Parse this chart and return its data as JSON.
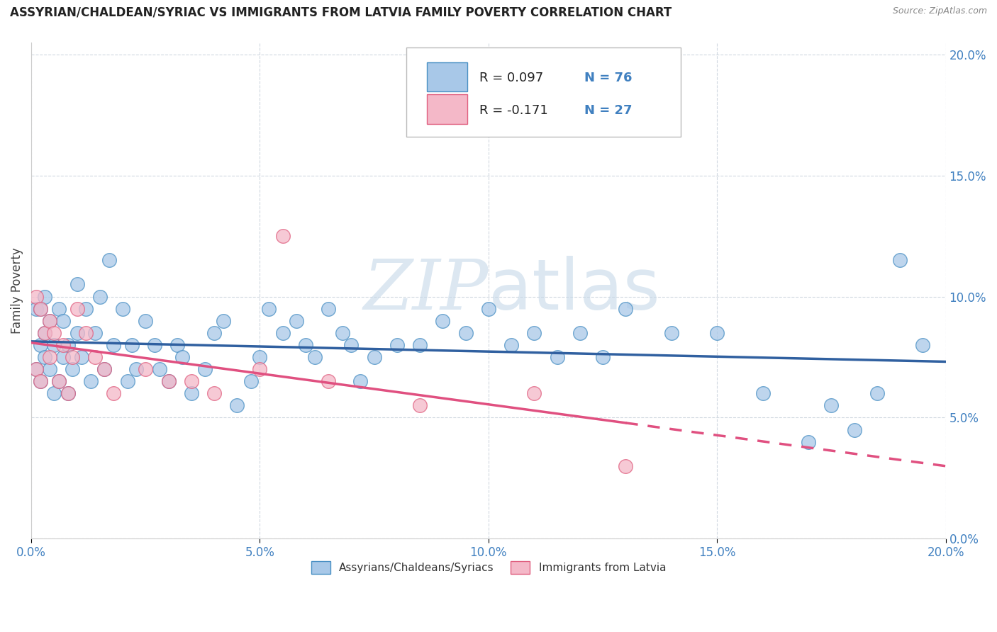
{
  "title": "ASSYRIAN/CHALDEAN/SYRIAC VS IMMIGRANTS FROM LATVIA FAMILY POVERTY CORRELATION CHART",
  "source": "Source: ZipAtlas.com",
  "ylabel": "Family Poverty",
  "legend_label1": "Assyrians/Chaldeans/Syriacs",
  "legend_label2": "Immigrants from Latvia",
  "R1": 0.097,
  "N1": 76,
  "R2": -0.171,
  "N2": 27,
  "color_blue_fill": "#a8c8e8",
  "color_blue_edge": "#4a90c4",
  "color_pink_fill": "#f4b8c8",
  "color_pink_edge": "#e06080",
  "color_blue_line": "#3060a0",
  "color_pink_line": "#e05080",
  "watermark_color": "#c8d8e8",
  "xmin": 0.0,
  "xmax": 0.2,
  "ymin": 0.0,
  "ymax": 0.205,
  "yticks": [
    0.0,
    0.05,
    0.1,
    0.15,
    0.2
  ],
  "ytick_labels": [
    "0.0%",
    "5.0%",
    "10.0%",
    "15.0%",
    "20.0%"
  ],
  "blue_x": [
    0.001,
    0.001,
    0.002,
    0.002,
    0.002,
    0.003,
    0.003,
    0.003,
    0.004,
    0.004,
    0.005,
    0.005,
    0.006,
    0.006,
    0.007,
    0.007,
    0.008,
    0.008,
    0.009,
    0.01,
    0.01,
    0.011,
    0.012,
    0.013,
    0.014,
    0.015,
    0.016,
    0.017,
    0.018,
    0.02,
    0.021,
    0.022,
    0.023,
    0.025,
    0.027,
    0.028,
    0.03,
    0.032,
    0.033,
    0.035,
    0.038,
    0.04,
    0.042,
    0.045,
    0.048,
    0.05,
    0.052,
    0.055,
    0.058,
    0.06,
    0.062,
    0.065,
    0.068,
    0.07,
    0.072,
    0.075,
    0.08,
    0.085,
    0.09,
    0.095,
    0.1,
    0.105,
    0.11,
    0.115,
    0.12,
    0.125,
    0.13,
    0.14,
    0.15,
    0.16,
    0.17,
    0.175,
    0.18,
    0.185,
    0.19,
    0.195
  ],
  "blue_y": [
    0.07,
    0.095,
    0.065,
    0.08,
    0.095,
    0.075,
    0.085,
    0.1,
    0.07,
    0.09,
    0.06,
    0.08,
    0.065,
    0.095,
    0.075,
    0.09,
    0.06,
    0.08,
    0.07,
    0.085,
    0.105,
    0.075,
    0.095,
    0.065,
    0.085,
    0.1,
    0.07,
    0.115,
    0.08,
    0.095,
    0.065,
    0.08,
    0.07,
    0.09,
    0.08,
    0.07,
    0.065,
    0.08,
    0.075,
    0.06,
    0.07,
    0.085,
    0.09,
    0.055,
    0.065,
    0.075,
    0.095,
    0.085,
    0.09,
    0.08,
    0.075,
    0.095,
    0.085,
    0.08,
    0.065,
    0.075,
    0.08,
    0.08,
    0.09,
    0.085,
    0.095,
    0.08,
    0.085,
    0.075,
    0.085,
    0.075,
    0.095,
    0.085,
    0.085,
    0.06,
    0.04,
    0.055,
    0.045,
    0.06,
    0.115,
    0.08
  ],
  "pink_x": [
    0.001,
    0.001,
    0.002,
    0.002,
    0.003,
    0.004,
    0.004,
    0.005,
    0.006,
    0.007,
    0.008,
    0.009,
    0.01,
    0.012,
    0.014,
    0.016,
    0.018,
    0.025,
    0.03,
    0.035,
    0.04,
    0.05,
    0.055,
    0.065,
    0.085,
    0.11,
    0.13
  ],
  "pink_y": [
    0.07,
    0.1,
    0.065,
    0.095,
    0.085,
    0.09,
    0.075,
    0.085,
    0.065,
    0.08,
    0.06,
    0.075,
    0.095,
    0.085,
    0.075,
    0.07,
    0.06,
    0.07,
    0.065,
    0.065,
    0.06,
    0.07,
    0.125,
    0.065,
    0.055,
    0.06,
    0.03
  ]
}
